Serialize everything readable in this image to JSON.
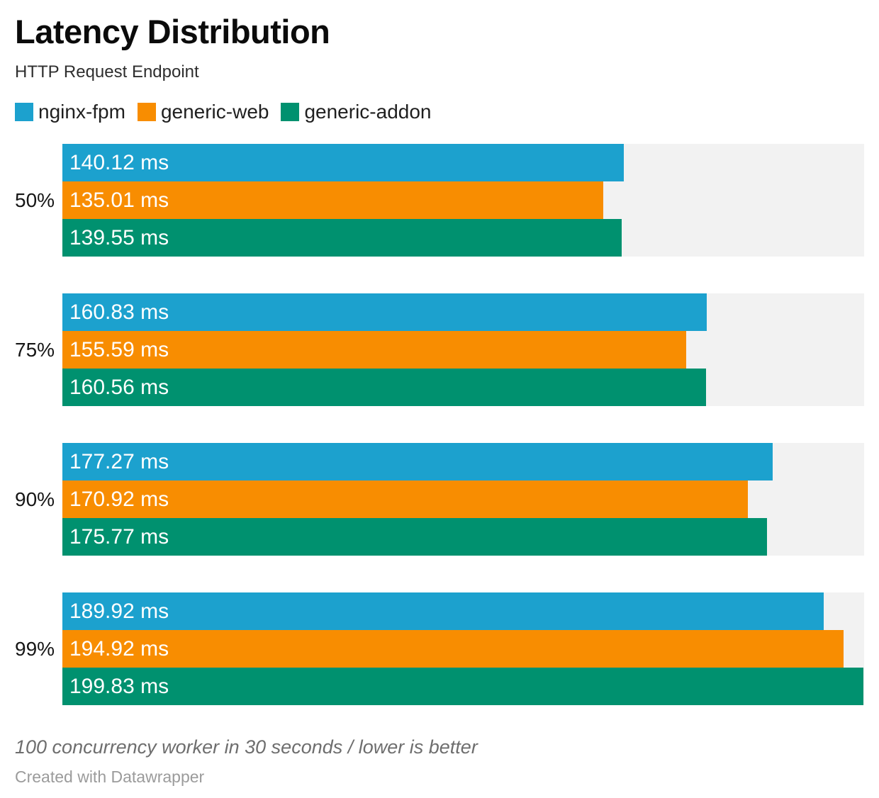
{
  "header": {
    "title": "Latency Distribution",
    "subtitle": "HTTP Request Endpoint"
  },
  "chart_data": {
    "type": "bar",
    "orientation": "horizontal",
    "title": "Latency Distribution",
    "subtitle": "HTTP Request Endpoint",
    "categories": [
      "50%",
      "75%",
      "90%",
      "99%"
    ],
    "series": [
      {
        "name": "nginx-fpm",
        "color": "#1ca1ce",
        "values": [
          140.12,
          160.83,
          177.27,
          189.92
        ]
      },
      {
        "name": "generic-web",
        "color": "#f88d01",
        "values": [
          135.01,
          155.59,
          170.92,
          194.92
        ]
      },
      {
        "name": "generic-addon",
        "color": "#00916f",
        "values": [
          139.55,
          160.56,
          175.77,
          199.83
        ]
      }
    ],
    "value_suffix": " ms",
    "value_decimals": 2,
    "xlim": [
      0,
      200
    ],
    "grid": false,
    "legend_position": "top",
    "bar_label_position": "inside-start",
    "track_color": "#f2f2f2",
    "bar_label_color": "#ffffff"
  },
  "footer": {
    "notes": "100 concurrency worker in 30 seconds / lower is better",
    "attribution": "Created with Datawrapper"
  }
}
